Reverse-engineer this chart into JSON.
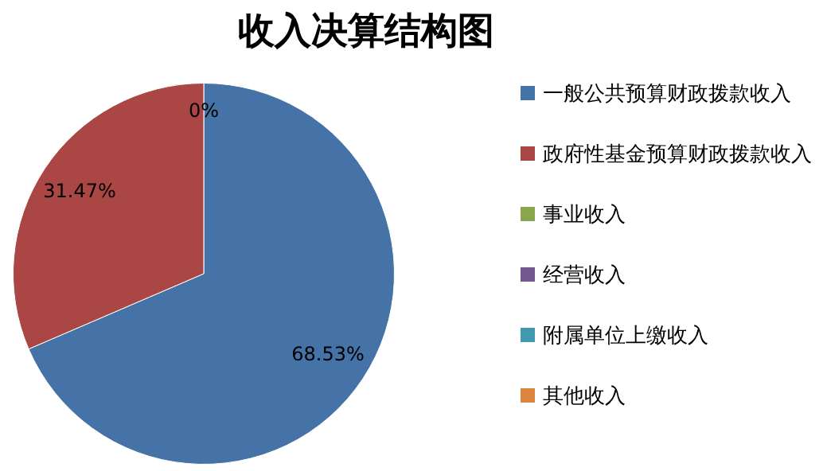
{
  "chart_data": {
    "type": "pie",
    "title": "收入决算结构图",
    "categories": [
      "一般公共预算财政拨款收入",
      "政府性基金预算财政拨款收入",
      "事业收入",
      "经营收入",
      "附属单位上缴收入",
      "其他收入"
    ],
    "values": [
      68.53,
      31.47,
      0,
      0,
      0,
      0
    ],
    "colors": [
      "#4572a7",
      "#aa4643",
      "#89a54e",
      "#71588f",
      "#4198af",
      "#db843d"
    ],
    "value_labels": [
      "68.53%",
      "31.47%",
      "0%",
      null,
      null,
      null
    ],
    "legend": "right"
  }
}
